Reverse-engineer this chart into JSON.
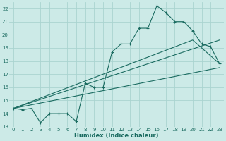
{
  "xlabel": "Humidex (Indice chaleur)",
  "bg_color": "#cceae7",
  "grid_color": "#aad4d0",
  "line_color": "#1a6b60",
  "xlim": [
    -0.5,
    23.5
  ],
  "ylim": [
    13,
    22.5
  ],
  "yticks": [
    13,
    14,
    15,
    16,
    17,
    18,
    19,
    20,
    21,
    22
  ],
  "xticks": [
    0,
    1,
    2,
    3,
    4,
    5,
    6,
    7,
    8,
    9,
    10,
    11,
    12,
    13,
    14,
    15,
    16,
    17,
    18,
    19,
    20,
    21,
    22,
    23
  ],
  "series1_x": [
    0,
    1,
    2,
    3,
    4,
    5,
    6,
    7,
    8,
    9,
    10,
    11,
    12,
    13,
    14,
    15,
    16,
    17,
    18,
    19,
    20,
    21,
    22,
    23
  ],
  "series1_y": [
    14.4,
    14.3,
    14.4,
    13.3,
    14.0,
    14.0,
    14.0,
    13.4,
    16.3,
    16.0,
    16.0,
    18.7,
    19.3,
    19.3,
    20.5,
    20.5,
    22.2,
    21.7,
    21.0,
    21.0,
    20.3,
    19.3,
    19.1,
    17.8
  ],
  "series2_x": [
    0,
    23
  ],
  "series2_y": [
    14.4,
    17.5
  ],
  "series3_x": [
    0,
    20,
    23
  ],
  "series3_y": [
    14.4,
    19.6,
    17.8
  ],
  "series4_x": [
    0,
    23
  ],
  "series4_y": [
    14.4,
    19.6
  ]
}
